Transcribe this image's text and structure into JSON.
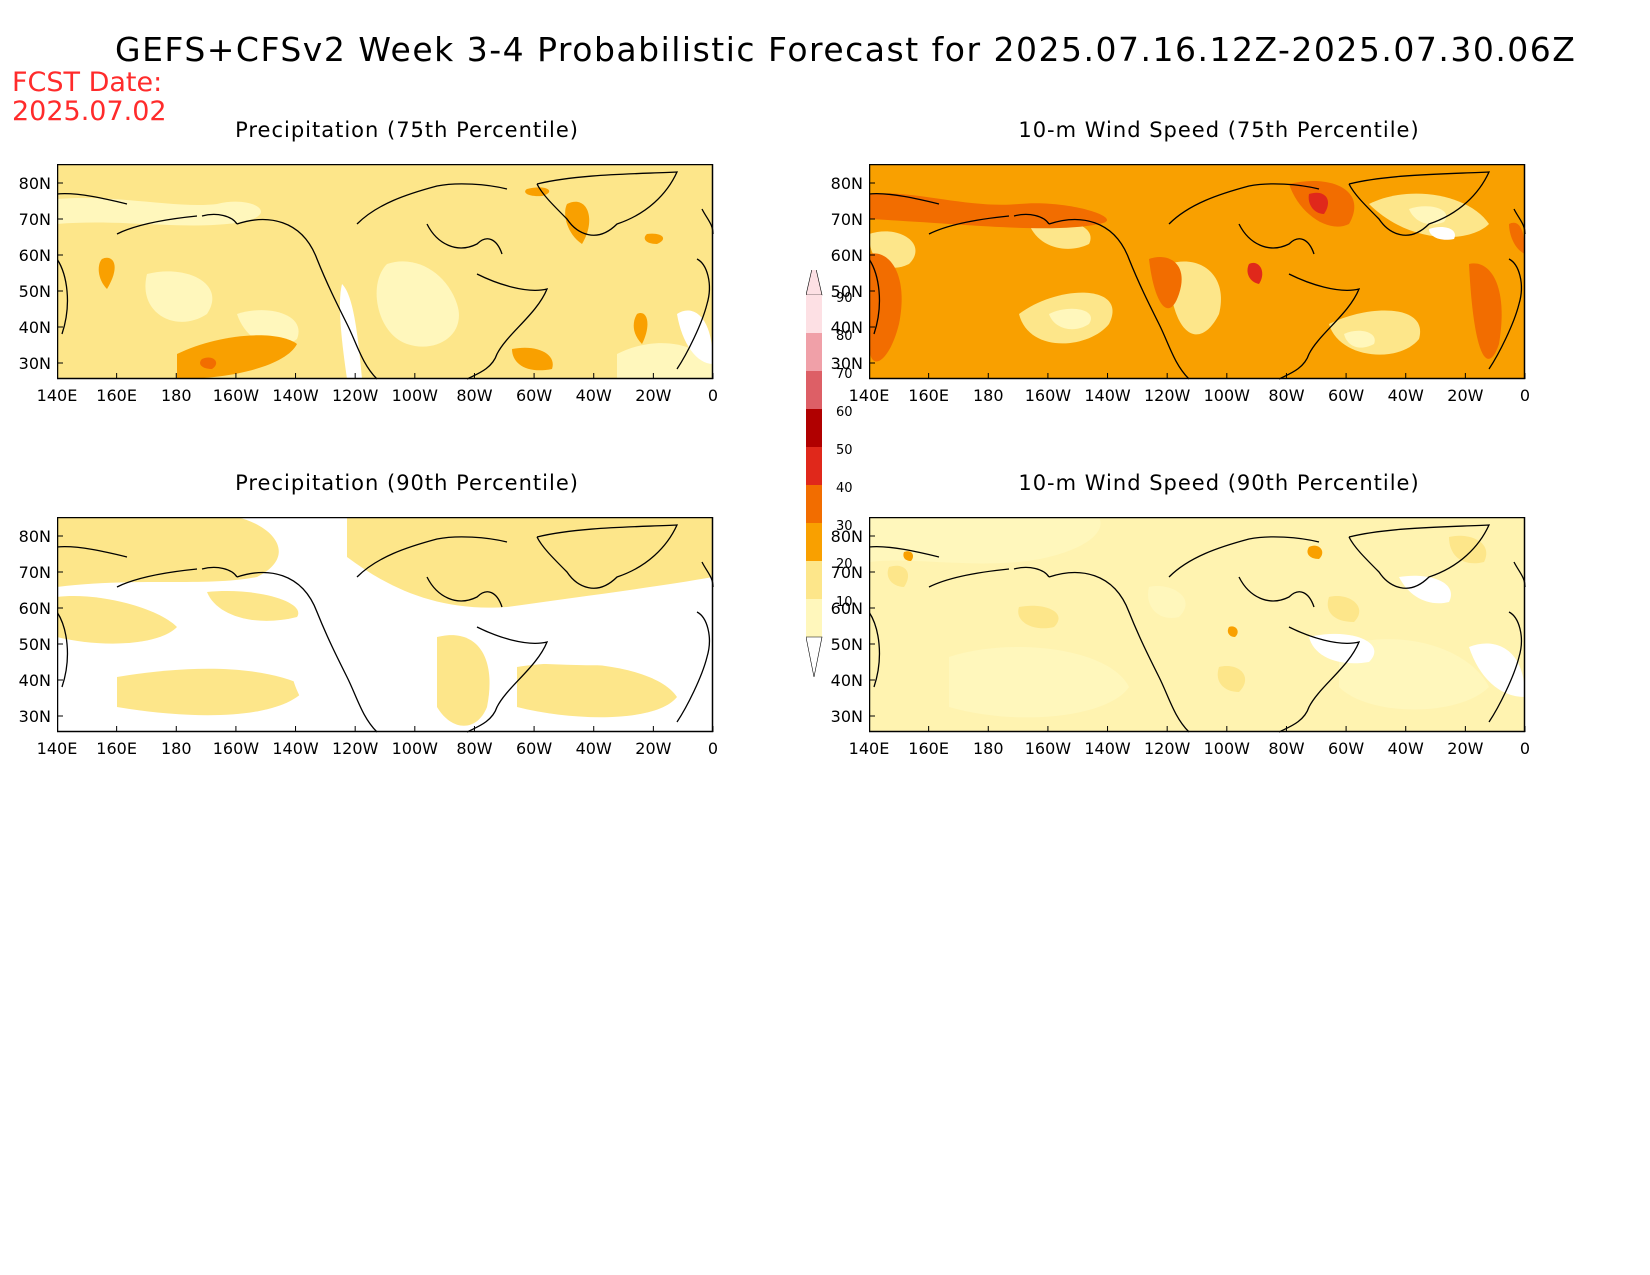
{
  "title": "GEFS+CFSv2 Week 3-4 Probabilistic Forecast for 2025.07.16.12Z-2025.07.30.06Z",
  "fcst_label": "FCST Date:",
  "fcst_date": "2025.07.02",
  "panels": [
    {
      "title": "Precipitation (75th Percentile)",
      "base_color": "#fde68a",
      "pattern": "p75"
    },
    {
      "title": "10-m Wind Speed (75th Percentile)",
      "base_color": "#f9a000",
      "pattern": "w75"
    },
    {
      "title": "Precipitation (90th Percentile)",
      "base_color": "#ffffff",
      "pattern": "p90"
    },
    {
      "title": "10-m Wind Speed (90th Percentile)",
      "base_color": "#fff3b0",
      "pattern": "w90"
    }
  ],
  "y_ticks": [
    "80N",
    "70N",
    "60N",
    "50N",
    "40N",
    "30N"
  ],
  "x_ticks": [
    "140E",
    "160E",
    "180",
    "160W",
    "140W",
    "120W",
    "100W",
    "80W",
    "60W",
    "40W",
    "20W",
    "0"
  ],
  "colorbar": {
    "labels": [
      "90",
      "80",
      "70",
      "60",
      "50",
      "40",
      "30",
      "20",
      "10"
    ],
    "colors": {
      "c10": "#fff7bc",
      "c20": "#fde68a",
      "c30": "#f9a000",
      "c40": "#f26d00",
      "c50": "#e0281b",
      "c60": "#b00000",
      "c70": "#dd5f66",
      "c80": "#f0a0a8",
      "c90": "#fde0e4"
    }
  }
}
